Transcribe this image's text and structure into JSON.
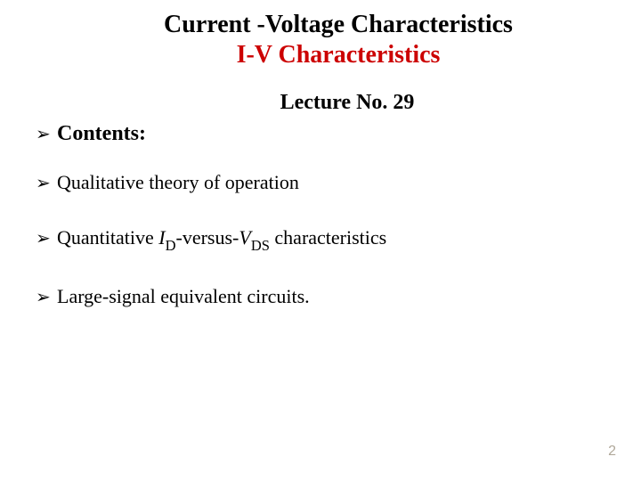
{
  "title_line1": "Current -Voltage  Characteristics",
  "title_line2": "I-V Characteristics",
  "lecture_label": "Lecture No. 29",
  "contents_label": "Contents:",
  "bullets": {
    "b1": "Qualitative theory of operation",
    "b2_pre": "Quantitative ",
    "b2_I": "I",
    "b2_Dsub": "D",
    "b2_mid": "-versus-",
    "b2_V": "V",
    "b2_DSsub": "DS",
    "b2_post": " characteristics",
    "b3": "Large-signal equivalent circuits."
  },
  "arrow_glyph": "➢",
  "page_number": "2",
  "colors": {
    "title2": "#cc0000",
    "text": "#000000",
    "pagenum": "#b0a89a",
    "background": "#ffffff"
  },
  "fonts": {
    "title_size_pt": 28,
    "lecture_size_pt": 24,
    "contents_size_pt": 24,
    "bullet_size_pt": 22,
    "pagenum_size_pt": 16
  }
}
